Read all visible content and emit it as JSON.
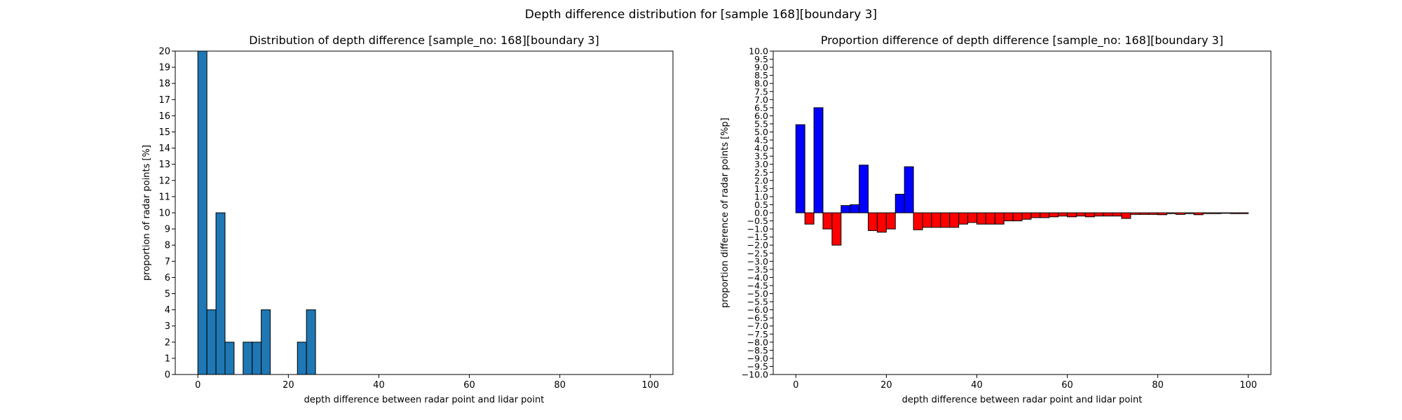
{
  "figure": {
    "suptitle": "Depth difference distribution for [sample 168][boundary 3]"
  },
  "chart_data": [
    {
      "type": "bar",
      "title": "Distribution of depth difference [sample_no: 168][boundary 3]",
      "xlabel": "depth difference between radar point and lidar point",
      "ylabel": "proportion of radar points [%]",
      "xlim": [
        -5,
        105
      ],
      "ylim": [
        0,
        20
      ],
      "x_ticks": [
        0,
        20,
        40,
        60,
        80,
        100
      ],
      "y_ticks": [
        0,
        1,
        2,
        3,
        4,
        5,
        6,
        7,
        8,
        9,
        10,
        11,
        12,
        13,
        14,
        15,
        16,
        17,
        18,
        19,
        20
      ],
      "bin_width": 2,
      "bar_color": "#1f77b4",
      "edge_color": "#000000",
      "x": [
        0,
        2,
        4,
        6,
        8,
        10,
        12,
        14,
        16,
        18,
        20,
        22,
        24
      ],
      "values": [
        20,
        4,
        10,
        2,
        0,
        2,
        2,
        4,
        0,
        0,
        0,
        2,
        4
      ]
    },
    {
      "type": "bar",
      "title": "Proportion difference of depth difference [sample_no: 168][boundary 3]",
      "xlabel": "depth difference between radar point and lidar point",
      "ylabel": "proportion difference of radar points [%p]",
      "xlim": [
        -5,
        105
      ],
      "ylim": [
        -10,
        10
      ],
      "x_ticks": [
        0,
        20,
        40,
        60,
        80,
        100
      ],
      "y_ticks": [
        -10,
        -9.5,
        -9,
        -8.5,
        -8,
        -7.5,
        -7,
        -6.5,
        -6,
        -5.5,
        -5,
        -4.5,
        -4,
        -3.5,
        -3,
        -2.5,
        -2,
        -1.5,
        -1,
        -0.5,
        0,
        0.5,
        1,
        1.5,
        2,
        2.5,
        3,
        3.5,
        4,
        4.5,
        5,
        5.5,
        6,
        6.5,
        7,
        7.5,
        8,
        8.5,
        9,
        9.5,
        10
      ],
      "bin_width": 2,
      "positive_color": "#0000ff",
      "negative_color": "#ff0000",
      "edge_color": "#000000",
      "x": [
        0,
        2,
        4,
        6,
        8,
        10,
        12,
        14,
        16,
        18,
        20,
        22,
        24,
        26,
        28,
        30,
        32,
        34,
        36,
        38,
        40,
        42,
        44,
        46,
        48,
        50,
        52,
        54,
        56,
        58,
        60,
        62,
        64,
        66,
        68,
        70,
        72,
        74,
        76,
        78,
        80,
        82,
        84,
        86,
        88,
        90,
        92,
        94,
        96,
        98
      ],
      "values": [
        5.45,
        -0.7,
        6.5,
        -1.0,
        -2.0,
        0.45,
        0.5,
        2.95,
        -1.1,
        -1.2,
        -1.0,
        1.15,
        2.85,
        -1.05,
        -0.9,
        -0.9,
        -0.9,
        -0.9,
        -0.7,
        -0.6,
        -0.7,
        -0.7,
        -0.7,
        -0.5,
        -0.5,
        -0.4,
        -0.3,
        -0.3,
        -0.25,
        -0.2,
        -0.25,
        -0.2,
        -0.25,
        -0.2,
        -0.2,
        -0.2,
        -0.35,
        -0.1,
        -0.1,
        -0.1,
        -0.12,
        -0.05,
        -0.1,
        -0.05,
        -0.12,
        -0.05,
        -0.05,
        -0.03,
        -0.05,
        -0.05
      ]
    }
  ]
}
